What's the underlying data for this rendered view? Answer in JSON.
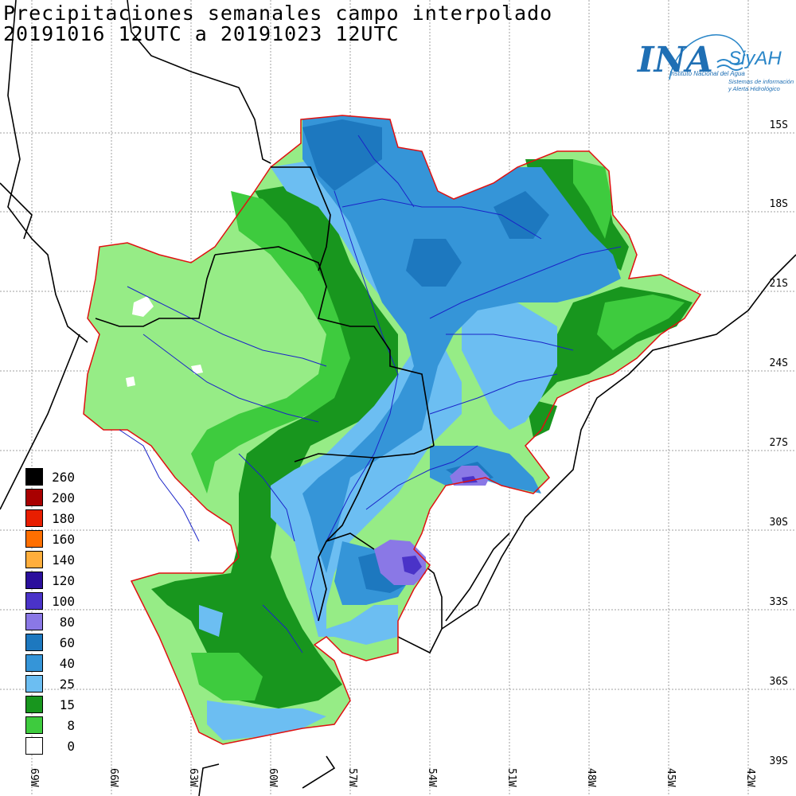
{
  "title": {
    "line1": "Precipitaciones semanales campo interpolado",
    "line2": "20191016 12UTC a 20191023 12UTC"
  },
  "logo": {
    "main": "INA",
    "sub": "SiyAH",
    "line1": "Instituto Nacional del Agua",
    "line2": "Sistemas de información",
    "line3": "y Alerta Hidrológico"
  },
  "lat_labels": [
    "15S",
    "18S",
    "21S",
    "24S",
    "27S",
    "30S",
    "33S",
    "36S",
    "39S"
  ],
  "lon_labels": [
    "69W",
    "66W",
    "63W",
    "60W",
    "57W",
    "54W",
    "51W",
    "48W",
    "45W",
    "42W"
  ],
  "legend": [
    {
      "label": "260",
      "color": "#000000"
    },
    {
      "label": "200",
      "color": "#a80000"
    },
    {
      "label": "180",
      "color": "#e81e00"
    },
    {
      "label": "160",
      "color": "#ff6f00"
    },
    {
      "label": "140",
      "color": "#ffae3c"
    },
    {
      "label": "120",
      "color": "#2a0f9c"
    },
    {
      "label": "100",
      "color": "#4a33c8"
    },
    {
      "label": "80",
      "color": "#8a78e6"
    },
    {
      "label": "60",
      "color": "#1d78bf"
    },
    {
      "label": "40",
      "color": "#3595d8"
    },
    {
      "label": "25",
      "color": "#6cbef2"
    },
    {
      "label": "15",
      "color": "#18961e"
    },
    {
      "label": "8",
      "color": "#3ecb3e"
    },
    {
      "label": "0",
      "color": "#ffffff"
    }
  ],
  "colors": {
    "dark_green": "#18961e",
    "green": "#3ecb3e",
    "light_green": "#96ec86",
    "light_blue": "#6cbef2",
    "mid_blue": "#3595d8",
    "dark_blue": "#1d78bf",
    "violet": "#8a78e6",
    "basin_border": "#e01010",
    "rivers": "#1a24c8"
  }
}
